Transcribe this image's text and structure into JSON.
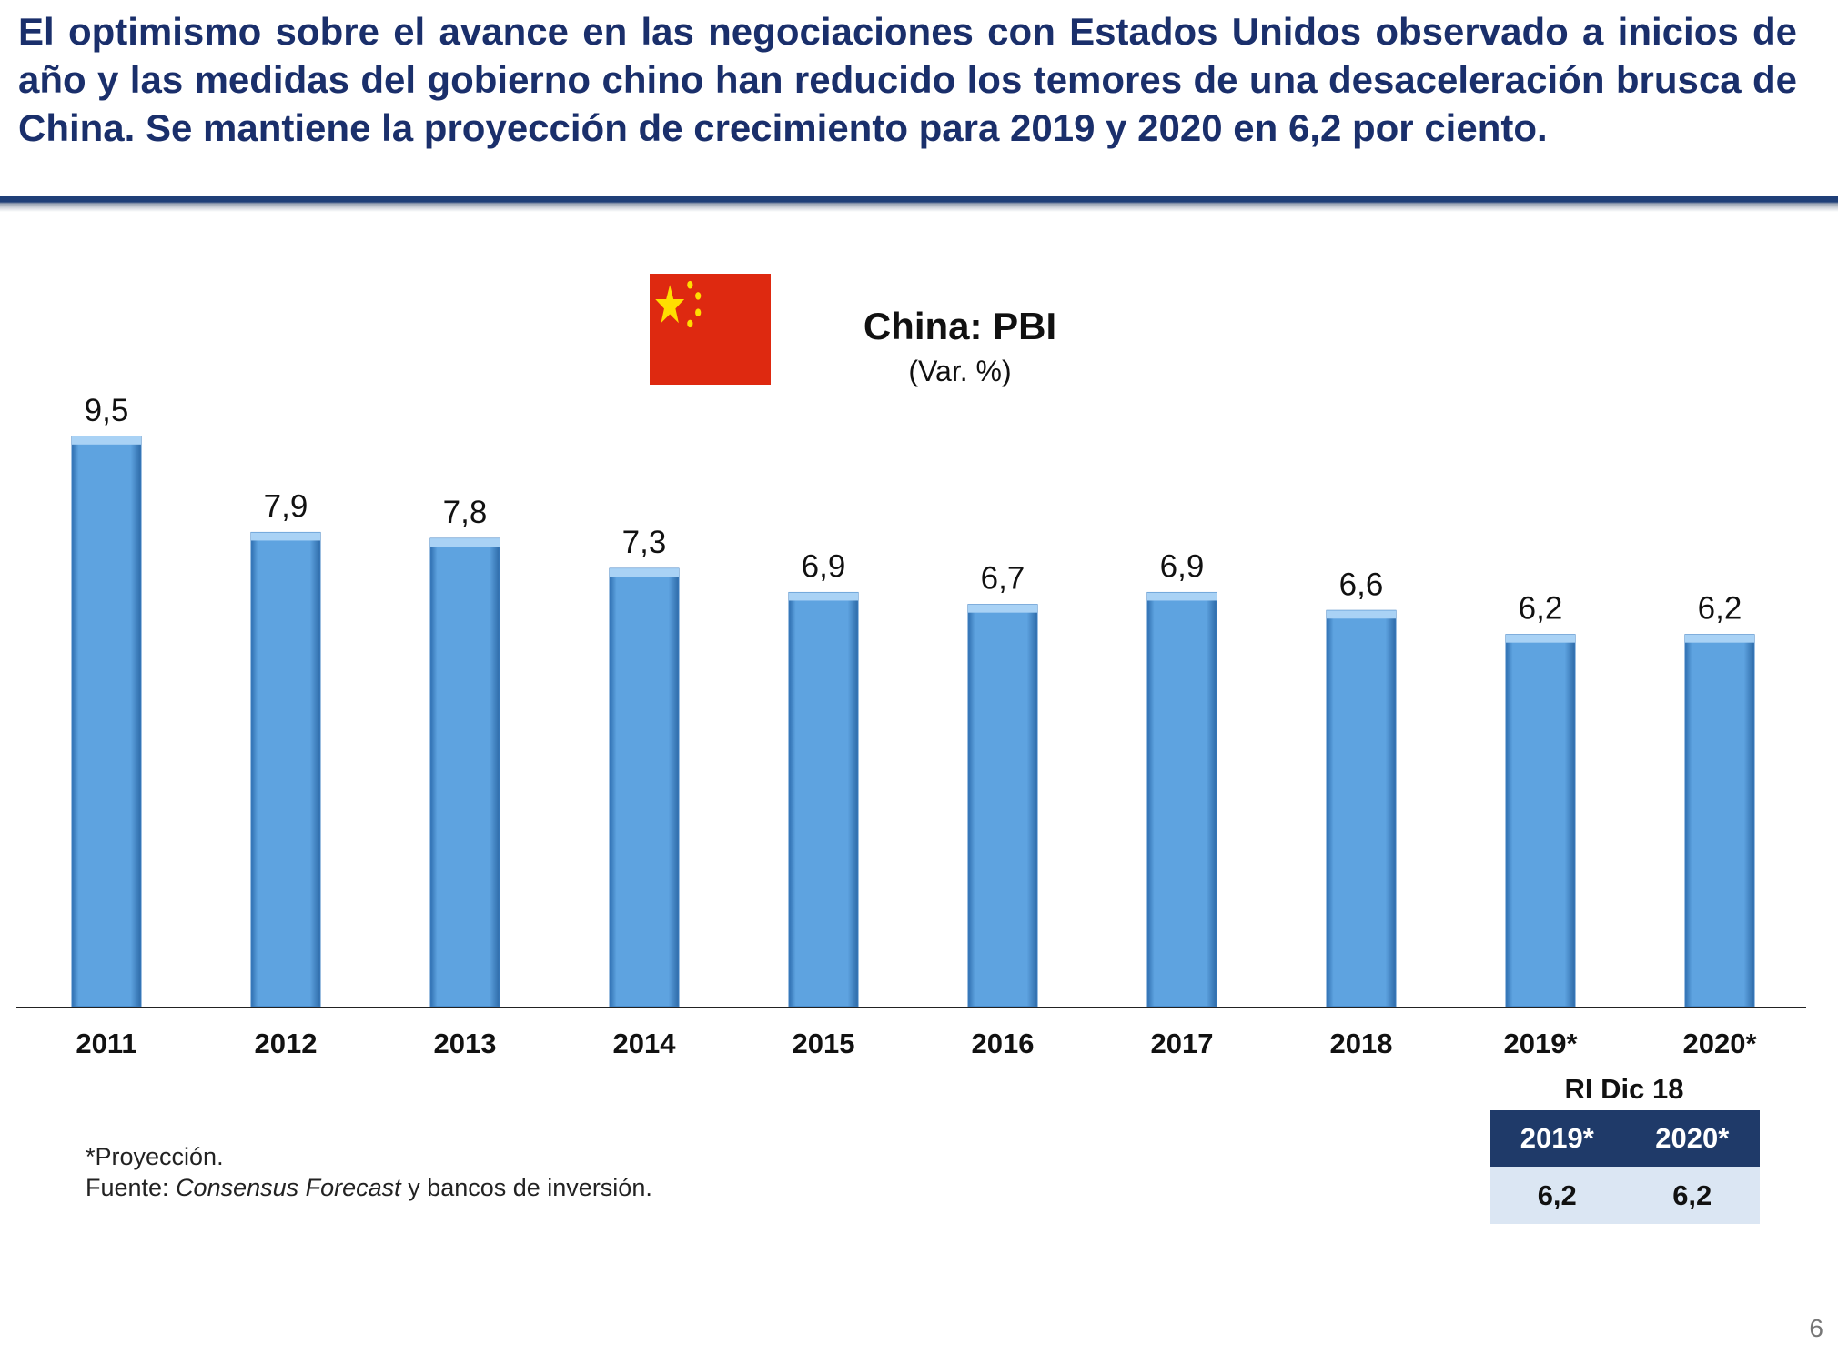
{
  "headline": "El optimismo sobre el avance en las negociaciones con Estados Unidos observado a inicios de año y las medidas del gobierno chino han reducido los temores de una desaceleración brusca de China. Se mantiene la proyección de crecimiento para 2019 y 2020 en 6,2 por ciento.",
  "chart_data": {
    "type": "bar",
    "title": "China: PBI",
    "subtitle": "(Var. %)",
    "categories": [
      "2011",
      "2012",
      "2013",
      "2014",
      "2015",
      "2016",
      "2017",
      "2018",
      "2019*",
      "2020*"
    ],
    "values": [
      9.5,
      7.9,
      7.8,
      7.3,
      6.9,
      6.7,
      6.9,
      6.6,
      6.2,
      6.2
    ],
    "value_labels": [
      "9,5",
      "7,9",
      "7,8",
      "7,3",
      "6,9",
      "6,7",
      "6,9",
      "6,6",
      "6,2",
      "6,2"
    ],
    "xlabel": "",
    "ylabel": "",
    "ylim": [
      0,
      10.3
    ],
    "grid": false,
    "bar_color": "#5ea3e0"
  },
  "notes": {
    "projection": "*Proyección.",
    "source_prefix": "Fuente: ",
    "source_italic": "Consensus Forecast",
    "source_suffix": " y bancos de inversión."
  },
  "ri_table": {
    "caption": "RI Dic 18",
    "headers": [
      "2019*",
      "2020*"
    ],
    "values": [
      "6,2",
      "6,2"
    ]
  },
  "colors": {
    "headline": "#1a2f6b",
    "table_header": "#1f3a69",
    "table_row": "#dbe6f3",
    "flag_red": "#de2910",
    "flag_star": "#ffde00"
  },
  "page_number": "6"
}
